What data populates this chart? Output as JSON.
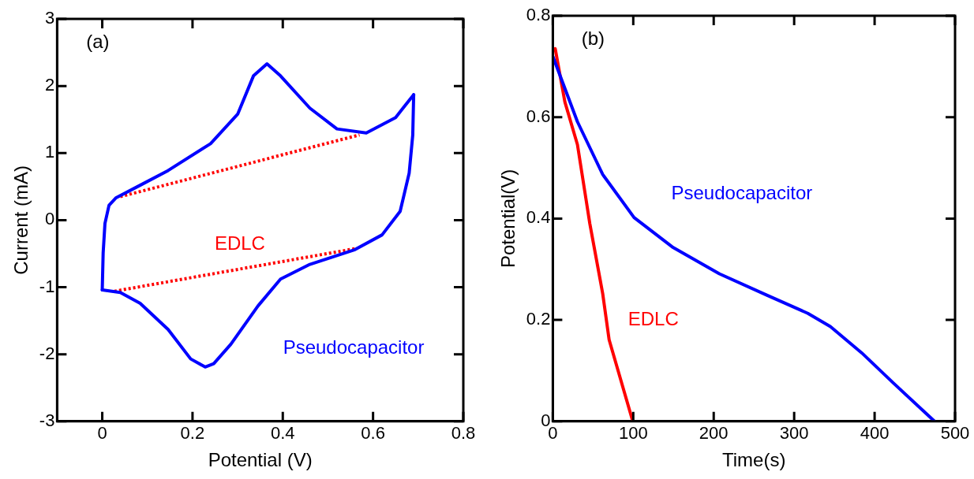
{
  "chart_data": [
    {
      "type": "line",
      "title": "(a)",
      "xlabel": "Potential (V)",
      "ylabel": "Current (mA)",
      "xlim": [
        -0.1,
        0.8
      ],
      "xticks": [
        0,
        0.2,
        0.4,
        0.6,
        0.8
      ],
      "ylim": [
        -3,
        3
      ],
      "yticks": [
        -3,
        -2,
        -1,
        0,
        1,
        2,
        3
      ],
      "series": [
        {
          "name": "Pseudocapacitor",
          "color": "#0000ff",
          "x": [
            0,
            0.002,
            0.006,
            0.015,
            0.03,
            0.084,
            0.146,
            0.24,
            0.3,
            0.335,
            0.365,
            0.395,
            0.46,
            0.52,
            0.585,
            0.65,
            0.69
          ],
          "values": [
            -1.04,
            -0.49,
            -0.05,
            0.22,
            0.33,
            0.52,
            0.74,
            1.14,
            1.58,
            2.15,
            2.33,
            2.15,
            1.67,
            1.36,
            1.3,
            1.53,
            1.87
          ]
        },
        {
          "color": "#0000ff",
          "x": [
            0.69,
            0.688,
            0.68,
            0.66,
            0.62,
            0.56,
            0.46,
            0.395,
            0.345,
            0.285,
            0.247,
            0.228,
            0.196,
            0.146,
            0.084,
            0.04,
            0
          ],
          "values": [
            1.87,
            1.27,
            0.7,
            0.13,
            -0.22,
            -0.44,
            -0.66,
            -0.88,
            -1.28,
            -1.85,
            -2.14,
            -2.19,
            -2.07,
            -1.63,
            -1.24,
            -1.08,
            -1.04
          ]
        },
        {
          "name": "EDLC",
          "color": "#ff0000",
          "line_style": "dotted",
          "x": [
            0.04,
            0.57
          ],
          "values": [
            0.35,
            1.27
          ]
        },
        {
          "color": "#ff0000",
          "line_style": "dotted",
          "x": [
            0.027,
            0.565
          ],
          "values": [
            -1.06,
            -0.42
          ]
        }
      ]
    },
    {
      "type": "line",
      "title": "(b)",
      "xlabel": "Time(s)",
      "ylabel": "Potential(V)",
      "xlim": [
        0,
        500
      ],
      "xticks": [
        0,
        100,
        200,
        300,
        400,
        500
      ],
      "ylim": [
        0,
        0.8
      ],
      "yticks": [
        0,
        0.2,
        0.4,
        0.6,
        0.8
      ],
      "series": [
        {
          "name": "Pseudocapacitor",
          "color": "#0000ff",
          "x": [
            0,
            30.6,
            62,
            101,
            148.5,
            207,
            266,
            317,
            345,
            384,
            423,
            474.5
          ],
          "values": [
            0.72,
            0.591,
            0.487,
            0.402,
            0.344,
            0.291,
            0.249,
            0.213,
            0.187,
            0.135,
            0.076,
            0
          ]
        },
        {
          "name": "EDLC",
          "color": "#ff0000",
          "x": [
            3,
            15,
            30.6,
            46,
            62,
            70,
            99.4
          ],
          "values": [
            0.735,
            0.63,
            0.546,
            0.39,
            0.252,
            0.161,
            0
          ]
        }
      ]
    }
  ]
}
